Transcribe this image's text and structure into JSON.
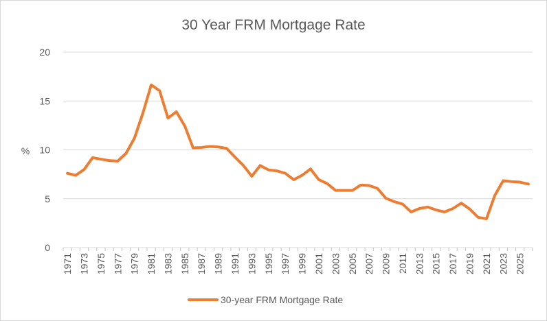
{
  "chart_data": {
    "type": "line",
    "title": "30 Year FRM Mortgage Rate",
    "xlabel": "",
    "ylabel": "%",
    "ylim": [
      0,
      20
    ],
    "yticks": [
      0,
      5,
      10,
      15,
      20
    ],
    "grid": true,
    "legend_position": "bottom",
    "color": "#ED7D31",
    "x": [
      1971,
      1972,
      1973,
      1974,
      1975,
      1976,
      1977,
      1978,
      1979,
      1980,
      1981,
      1982,
      1983,
      1984,
      1985,
      1986,
      1987,
      1988,
      1989,
      1990,
      1991,
      1992,
      1993,
      1994,
      1995,
      1996,
      1997,
      1998,
      1999,
      2000,
      2001,
      2002,
      2003,
      2004,
      2005,
      2006,
      2007,
      2008,
      2009,
      2010,
      2011,
      2012,
      2013,
      2014,
      2015,
      2016,
      2017,
      2018,
      2019,
      2020,
      2021,
      2022,
      2023,
      2024,
      2025,
      2026
    ],
    "xtick_labels": [
      "1971",
      "1973",
      "1975",
      "1977",
      "1979",
      "1981",
      "1983",
      "1985",
      "1987",
      "1989",
      "1991",
      "1993",
      "1995",
      "1997",
      "1999",
      "2001",
      "2003",
      "2005",
      "2007",
      "2009",
      "2011",
      "2013",
      "2015",
      "2017",
      "2019",
      "2021",
      "2023",
      "2025"
    ],
    "series": [
      {
        "name": "30-year FRM Mortgage Rate",
        "values": [
          7.6,
          7.4,
          8.0,
          9.2,
          9.05,
          8.9,
          8.85,
          9.65,
          11.2,
          13.75,
          16.65,
          16.05,
          13.25,
          13.9,
          12.45,
          10.2,
          10.25,
          10.35,
          10.3,
          10.15,
          9.25,
          8.4,
          7.3,
          8.4,
          7.95,
          7.85,
          7.6,
          6.95,
          7.4,
          8.05,
          6.95,
          6.55,
          5.85,
          5.85,
          5.85,
          6.4,
          6.35,
          6.05,
          5.05,
          4.7,
          4.45,
          3.65,
          4.0,
          4.15,
          3.85,
          3.65,
          4.0,
          4.55,
          3.95,
          3.1,
          2.95,
          5.35,
          6.85,
          6.75,
          6.7,
          6.5
        ]
      }
    ]
  }
}
